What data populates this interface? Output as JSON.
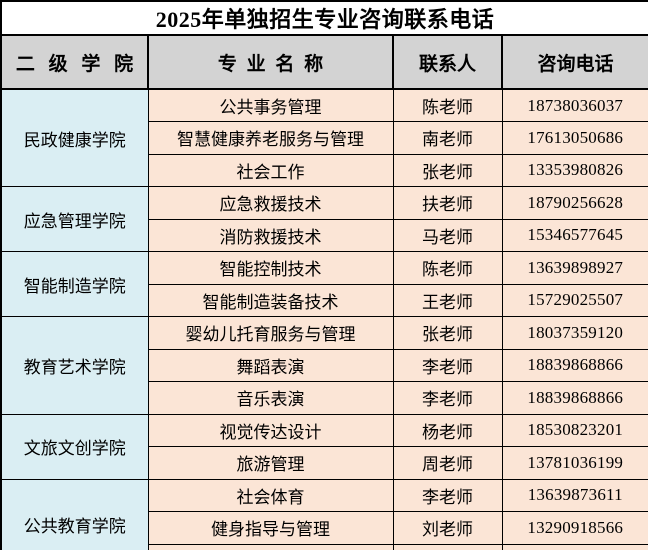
{
  "title": "2025年单独招生专业咨询联系电话",
  "columns": {
    "college": "二 级 学 院",
    "major": "专 业 名 称",
    "contact": "联系人",
    "phone": "咨询电话"
  },
  "colors": {
    "header_bg": "#d3d3d3",
    "college_bg": "#daeef3",
    "cell_bg": "#fbe5d6",
    "border": "#000000"
  },
  "groups": [
    {
      "college": "民政健康学院",
      "majors": [
        {
          "major": "公共事务管理",
          "contact": "陈老师",
          "phone": "18738036037"
        },
        {
          "major": "智慧健康养老服务与管理",
          "contact": "南老师",
          "phone": "17613050686"
        },
        {
          "major": "社会工作",
          "contact": "张老师",
          "phone": "13353980826"
        }
      ]
    },
    {
      "college": "应急管理学院",
      "majors": [
        {
          "major": "应急救援技术",
          "contact": "扶老师",
          "phone": "18790256628"
        },
        {
          "major": "消防救援技术",
          "contact": "马老师",
          "phone": "15346577645"
        }
      ]
    },
    {
      "college": "智能制造学院",
      "majors": [
        {
          "major": "智能控制技术",
          "contact": "陈老师",
          "phone": "13639898927"
        },
        {
          "major": "智能制造装备技术",
          "contact": "王老师",
          "phone": "15729025507"
        }
      ]
    },
    {
      "college": "教育艺术学院",
      "majors": [
        {
          "major": "婴幼儿托育服务与管理",
          "contact": "张老师",
          "phone": "18037359120"
        },
        {
          "major": "舞蹈表演",
          "contact": "李老师",
          "phone": "18839868866"
        },
        {
          "major": "音乐表演",
          "contact": "李老师",
          "phone": "18839868866"
        }
      ]
    },
    {
      "college": "文旅文创学院",
      "majors": [
        {
          "major": "视觉传达设计",
          "contact": "杨老师",
          "phone": "18530823201"
        },
        {
          "major": "旅游管理",
          "contact": "周老师",
          "phone": "13781036199"
        }
      ]
    },
    {
      "college": "公共教育学院",
      "majors": [
        {
          "major": "社会体育",
          "contact": "李老师",
          "phone": "13639873611"
        },
        {
          "major": "健身指导与管理",
          "contact": "刘老师",
          "phone": "13290918566"
        }
      ]
    }
  ]
}
